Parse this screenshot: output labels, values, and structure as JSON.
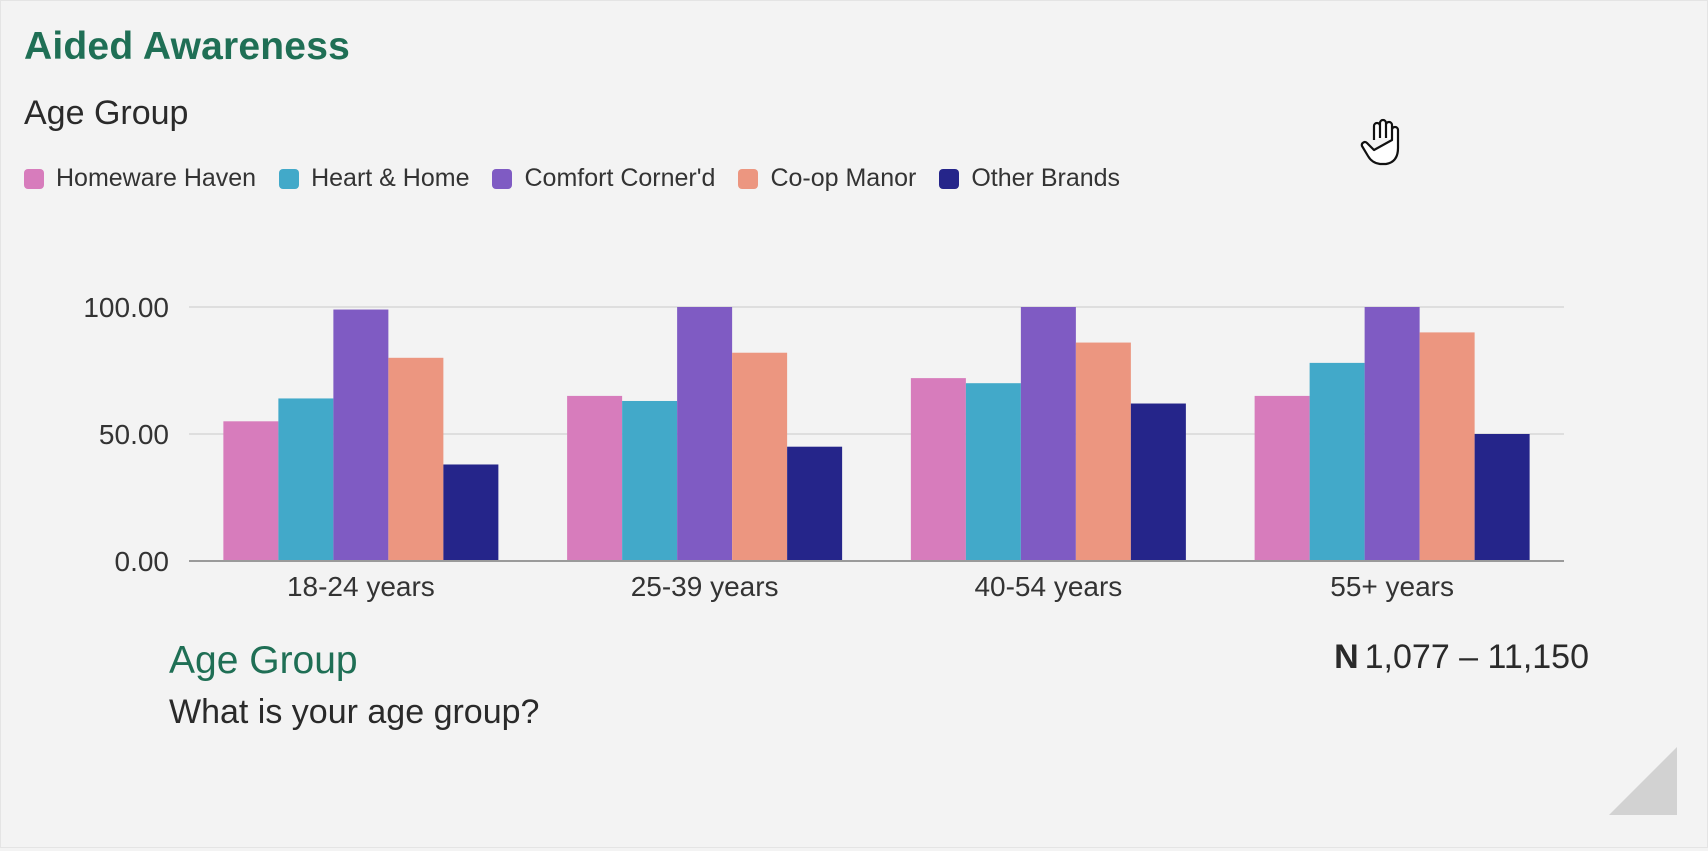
{
  "header": {
    "title": "Aided Awareness",
    "subtitle": "Age Group"
  },
  "legend": [
    {
      "label": "Homeware Haven",
      "color": "#d77cbc"
    },
    {
      "label": "Heart & Home",
      "color": "#42a9c9"
    },
    {
      "label": "Comfort Corner'd",
      "color": "#7f5bc3"
    },
    {
      "label": "Co-op Manor",
      "color": "#ec9680"
    },
    {
      "label": "Other Brands",
      "color": "#25258a"
    }
  ],
  "chart_data": {
    "type": "bar",
    "categories": [
      "18-24 years",
      "25-39 years",
      "40-54 years",
      "55+ years"
    ],
    "series": [
      {
        "name": "Homeware Haven",
        "color": "#d77cbc",
        "values": [
          55,
          65,
          72,
          65
        ]
      },
      {
        "name": "Heart & Home",
        "color": "#42a9c9",
        "values": [
          64,
          63,
          70,
          78
        ]
      },
      {
        "name": "Comfort Corner'd",
        "color": "#7f5bc3",
        "values": [
          99,
          100,
          100,
          100
        ]
      },
      {
        "name": "Co-op Manor",
        "color": "#ec9680",
        "values": [
          80,
          82,
          86,
          90
        ]
      },
      {
        "name": "Other Brands",
        "color": "#25258a",
        "values": [
          38,
          45,
          62,
          50
        ]
      }
    ],
    "yticks": [
      "0.00",
      "50.00",
      "100.00"
    ],
    "ylim": [
      0,
      100
    ],
    "grid": true,
    "legend_position": "top-left"
  },
  "footer": {
    "section_title": "Age Group",
    "question": "What is your age group?",
    "n_label": "N",
    "n_range": "1,077 – 11,150"
  },
  "icons": {
    "cursor": "hand-cursor-icon",
    "resize": "resize-corner-icon"
  }
}
